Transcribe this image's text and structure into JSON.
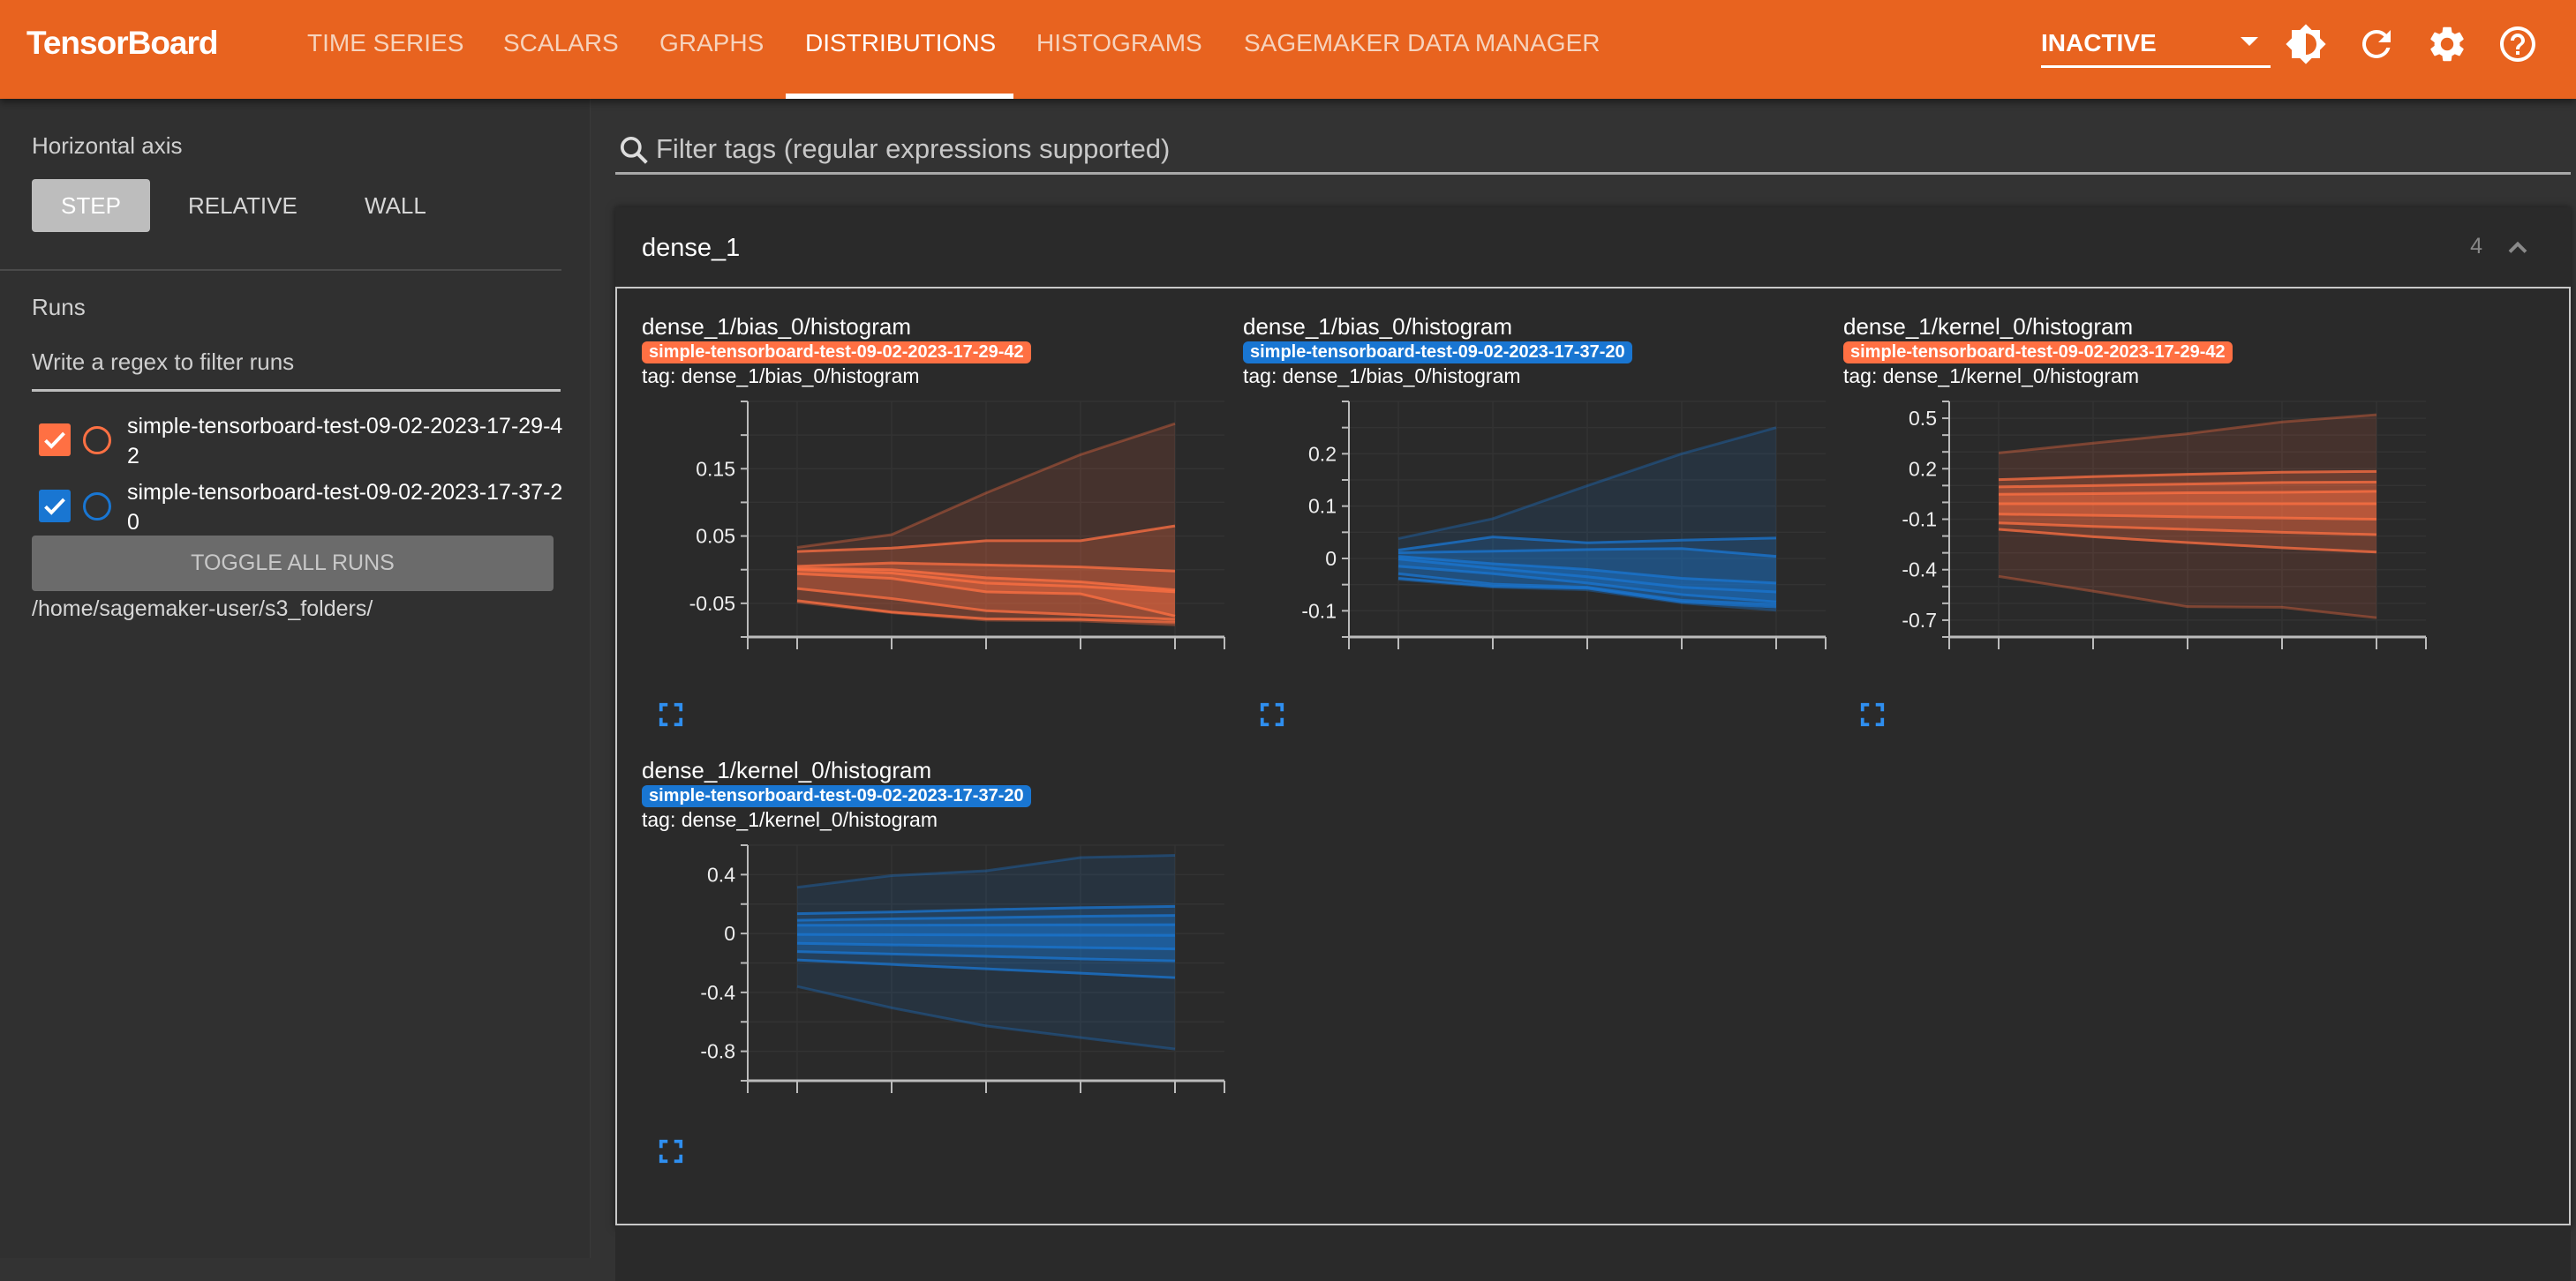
{
  "header": {
    "logo": "TensorBoard",
    "nav": [
      {
        "label": "TIME SERIES",
        "active": false
      },
      {
        "label": "SCALARS",
        "active": false
      },
      {
        "label": "GRAPHS",
        "active": false
      },
      {
        "label": "DISTRIBUTIONS",
        "active": true
      },
      {
        "label": "HISTOGRAMS",
        "active": false
      },
      {
        "label": "SAGEMAKER DATA MANAGER",
        "active": false
      }
    ],
    "run_select": "INACTIVE",
    "icons": [
      "brightness-icon",
      "refresh-icon",
      "settings-icon",
      "help-icon"
    ],
    "brand_color": "#e8631f"
  },
  "sidebar": {
    "horizontal_axis_label": "Horizontal axis",
    "axis_options": [
      "STEP",
      "RELATIVE",
      "WALL"
    ],
    "axis_selected": "STEP",
    "runs_label": "Runs",
    "runs_filter_placeholder": "Write a regex to filter runs",
    "runs": [
      {
        "name": "simple-tensorboard-test-09-02-2023-17-29-42",
        "checked": true,
        "color": "#ff7043"
      },
      {
        "name": "simple-tensorboard-test-09-02-2023-17-37-20",
        "checked": true,
        "color": "#1976d2"
      }
    ],
    "toggle_all": "TOGGLE ALL RUNS",
    "logdir": "/home/sagemaker-user/s3_folders/"
  },
  "main": {
    "filter_placeholder": "Filter tags (regular expressions supported)",
    "card": {
      "title": "dense_1",
      "count": "4"
    }
  },
  "chart_data": [
    {
      "type": "area",
      "title": "dense_1/bias_0/histogram",
      "run": "simple-tensorboard-test-09-02-2023-17-29-42",
      "tag": "tag: dense_1/bias_0/histogram",
      "color": "#ff7043",
      "ylim": [
        -0.1,
        0.25
      ],
      "yticks": [
        "-0.05",
        "0.05",
        "0.15"
      ],
      "minor_tick_step": 0.05,
      "percentiles": [
        0,
        7,
        16,
        31,
        50,
        69,
        84,
        93,
        100
      ],
      "series": [
        [
          -0.048,
          -0.064,
          -0.075,
          -0.076,
          -0.082
        ],
        [
          -0.046,
          -0.063,
          -0.073,
          -0.074,
          -0.078
        ],
        [
          -0.028,
          -0.043,
          -0.061,
          -0.067,
          -0.074
        ],
        [
          -0.006,
          -0.013,
          -0.033,
          -0.036,
          -0.069
        ],
        [
          0.0,
          -0.005,
          -0.02,
          -0.025,
          -0.033
        ],
        [
          0.002,
          0.0,
          -0.012,
          -0.018,
          -0.03
        ],
        [
          0.005,
          0.01,
          0.007,
          0.004,
          -0.002
        ],
        [
          0.027,
          0.032,
          0.043,
          0.043,
          0.065
        ],
        [
          0.033,
          0.052,
          0.114,
          0.171,
          0.217
        ]
      ]
    },
    {
      "type": "area",
      "title": "dense_1/bias_0/histogram",
      "run": "simple-tensorboard-test-09-02-2023-17-37-20",
      "tag": "tag: dense_1/bias_0/histogram",
      "color": "#1976d2",
      "ylim": [
        -0.15,
        0.3
      ],
      "yticks": [
        "-0.1",
        "0",
        "0.1",
        "0.2"
      ],
      "minor_tick_step": 0.05,
      "percentiles": [
        0,
        7,
        16,
        31,
        50,
        69,
        84,
        93,
        100
      ],
      "series": [
        [
          -0.04,
          -0.055,
          -0.06,
          -0.085,
          -0.099
        ],
        [
          -0.038,
          -0.053,
          -0.057,
          -0.083,
          -0.093
        ],
        [
          -0.029,
          -0.049,
          -0.055,
          -0.08,
          -0.088
        ],
        [
          -0.015,
          -0.029,
          -0.047,
          -0.069,
          -0.083
        ],
        [
          -0.001,
          -0.019,
          -0.035,
          -0.055,
          -0.064
        ],
        [
          0.004,
          -0.01,
          -0.021,
          -0.038,
          -0.047
        ],
        [
          0.011,
          0.014,
          0.017,
          0.019,
          0.004
        ],
        [
          0.016,
          0.041,
          0.03,
          0.035,
          0.039
        ],
        [
          0.038,
          0.076,
          0.139,
          0.2,
          0.25
        ]
      ]
    },
    {
      "type": "area",
      "title": "dense_1/kernel_0/histogram",
      "run": "simple-tensorboard-test-09-02-2023-17-29-42",
      "tag": "tag: dense_1/kernel_0/histogram",
      "color": "#ff7043",
      "ylim": [
        -0.8,
        0.6
      ],
      "yticks": [
        "-0.7",
        "-0.4",
        "-0.1",
        "0.2",
        "0.5"
      ],
      "minor_tick_step": 0.1,
      "percentiles": [
        0,
        7,
        16,
        31,
        50,
        69,
        84,
        93,
        100
      ],
      "series": [
        [
          -0.44,
          -0.528,
          -0.62,
          -0.624,
          -0.686
        ],
        [
          -0.16,
          -0.204,
          -0.239,
          -0.27,
          -0.295
        ],
        [
          -0.122,
          -0.143,
          -0.16,
          -0.178,
          -0.192
        ],
        [
          -0.07,
          -0.077,
          -0.086,
          -0.093,
          -0.1
        ],
        [
          -0.008,
          -0.008,
          -0.008,
          -0.008,
          -0.008
        ],
        [
          0.048,
          0.052,
          0.057,
          0.06,
          0.066
        ],
        [
          0.092,
          0.1,
          0.109,
          0.118,
          0.121
        ],
        [
          0.135,
          0.153,
          0.167,
          0.179,
          0.184
        ],
        [
          0.294,
          0.352,
          0.408,
          0.478,
          0.521
        ]
      ]
    },
    {
      "type": "area",
      "title": "dense_1/kernel_0/histogram",
      "run": "simple-tensorboard-test-09-02-2023-17-37-20",
      "tag": "tag: dense_1/kernel_0/histogram",
      "color": "#1976d2",
      "ylim": [
        -1.0,
        0.6
      ],
      "yticks": [
        "-0.8",
        "-0.4",
        "0",
        "0.4"
      ],
      "minor_tick_step": 0.2,
      "percentiles": [
        0,
        7,
        16,
        31,
        50,
        69,
        84,
        93,
        100
      ],
      "series": [
        [
          -0.36,
          -0.505,
          -0.628,
          -0.707,
          -0.785
        ],
        [
          -0.18,
          -0.21,
          -0.24,
          -0.27,
          -0.3
        ],
        [
          -0.123,
          -0.139,
          -0.155,
          -0.172,
          -0.186
        ],
        [
          -0.067,
          -0.077,
          -0.086,
          -0.096,
          -0.105
        ],
        [
          -0.007,
          -0.008,
          -0.01,
          -0.011,
          -0.013
        ],
        [
          0.056,
          0.057,
          0.058,
          0.059,
          0.06
        ],
        [
          0.09,
          0.1,
          0.108,
          0.117,
          0.123
        ],
        [
          0.135,
          0.146,
          0.162,
          0.175,
          0.184
        ],
        [
          0.314,
          0.393,
          0.426,
          0.516,
          0.531
        ]
      ]
    }
  ]
}
